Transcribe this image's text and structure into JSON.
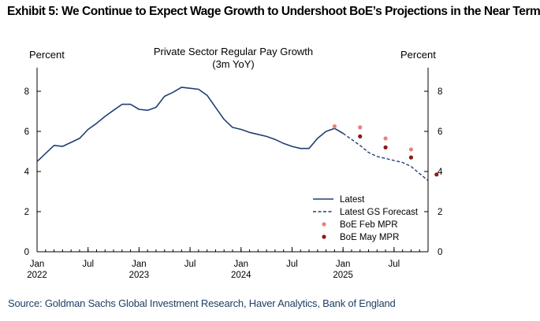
{
  "exhibit_title": "Exhibit 5: We Continue to Expect Wage Growth to Undershoot BoE’s Projections in the Near Term",
  "source": "Source: Goldman Sachs Global Investment Research, Haver Analytics, Bank of England",
  "colors": {
    "latest": "#1f3f73",
    "forecast": "#1f3f73",
    "boe_feb": "#e8817b",
    "boe_may": "#8b1a1a"
  },
  "chart_data": {
    "type": "line",
    "title": "Private Sector Regular Pay Growth",
    "subtitle": "(3m YoY)",
    "ylabel_left": "Percent",
    "ylabel_right": "Percent",
    "ylim": [
      0,
      9
    ],
    "yticks": [
      "0",
      "2",
      "4",
      "6",
      "8"
    ],
    "xlim": [
      "2022-01",
      "2025-11"
    ],
    "xticks": [
      {
        "month": "2022-01",
        "label": "Jan",
        "year": "2022"
      },
      {
        "month": "2022-07",
        "label": "Jul",
        "year": ""
      },
      {
        "month": "2023-01",
        "label": "Jan",
        "year": "2023"
      },
      {
        "month": "2023-07",
        "label": "Jul",
        "year": ""
      },
      {
        "month": "2024-01",
        "label": "Jan",
        "year": "2024"
      },
      {
        "month": "2024-07",
        "label": "Jul",
        "year": ""
      },
      {
        "month": "2025-01",
        "label": "Jan",
        "year": "2025"
      },
      {
        "month": "2025-07",
        "label": "Jul",
        "year": ""
      }
    ],
    "legend_position": "bottom-right",
    "series": [
      {
        "name": "Latest",
        "style": "solid",
        "x": [
          "2022-01",
          "2022-02",
          "2022-03",
          "2022-04",
          "2022-05",
          "2022-06",
          "2022-07",
          "2022-08",
          "2022-09",
          "2022-10",
          "2022-11",
          "2022-12",
          "2023-01",
          "2023-02",
          "2023-03",
          "2023-04",
          "2023-05",
          "2023-06",
          "2023-07",
          "2023-08",
          "2023-09",
          "2023-10",
          "2023-11",
          "2023-12",
          "2024-01",
          "2024-02",
          "2024-03",
          "2024-04",
          "2024-05",
          "2024-06",
          "2024-07",
          "2024-08",
          "2024-09",
          "2024-10",
          "2024-11",
          "2024-12",
          "2025-01"
        ],
        "y": [
          4.5,
          4.9,
          5.3,
          5.25,
          5.45,
          5.65,
          6.1,
          6.4,
          6.75,
          7.05,
          7.35,
          7.35,
          7.1,
          7.05,
          7.2,
          7.75,
          7.95,
          8.2,
          8.15,
          8.1,
          7.8,
          7.2,
          6.6,
          6.2,
          6.1,
          5.95,
          5.85,
          5.75,
          5.6,
          5.4,
          5.25,
          5.15,
          5.15,
          5.65,
          6.0,
          6.15,
          5.9
        ]
      },
      {
        "name": "Latest GS Forecast",
        "style": "dashed",
        "x": [
          "2025-01",
          "2025-02",
          "2025-03",
          "2025-04",
          "2025-05",
          "2025-06",
          "2025-07",
          "2025-08",
          "2025-09",
          "2025-10",
          "2025-11"
        ],
        "y": [
          5.9,
          5.6,
          5.3,
          4.95,
          4.75,
          4.65,
          4.55,
          4.45,
          4.25,
          3.9,
          3.55
        ]
      },
      {
        "name": "BoE Feb MPR",
        "style": "marker",
        "x": [
          "2024-12",
          "2025-03",
          "2025-06",
          "2025-09"
        ],
        "y": [
          6.25,
          6.2,
          5.65,
          5.1
        ]
      },
      {
        "name": "BoE May MPR",
        "style": "marker",
        "x": [
          "2025-03",
          "2025-06",
          "2025-09",
          "2025-12"
        ],
        "y": [
          5.75,
          5.2,
          4.7,
          3.85
        ]
      }
    ]
  }
}
